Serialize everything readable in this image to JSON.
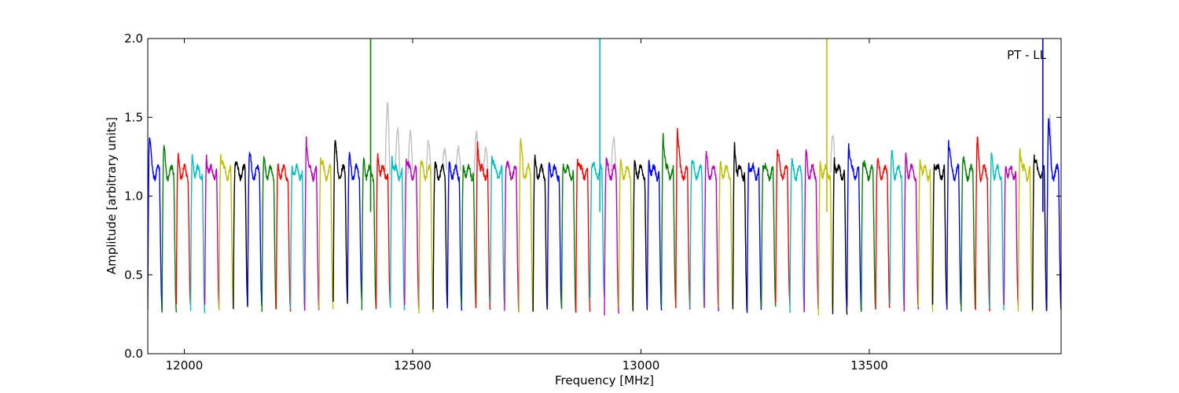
{
  "chart_data": {
    "type": "line",
    "title": "",
    "annotation": "PT - LL",
    "xlabel": "Frequency [MHz]",
    "ylabel": "Amplitude [arbitrary units]",
    "xlim": [
      11920,
      13920
    ],
    "ylim": [
      0.0,
      2.0
    ],
    "xticks": [
      12000,
      12500,
      13000,
      13500
    ],
    "xtick_labels": [
      "12000",
      "12500",
      "13000",
      "13500"
    ],
    "yticks": [
      0.0,
      0.5,
      1.0,
      1.5,
      2.0
    ],
    "ytick_labels": [
      "0.0",
      "0.5",
      "1.0",
      "1.5",
      "2.0"
    ],
    "grid": false,
    "legend": "none",
    "series_colors": [
      "#0000ff",
      "#008000",
      "#ff0000",
      "#00bfbf",
      "#bf00bf",
      "#bfbf00",
      "#000000"
    ],
    "background_series_color": "#c0c0c0",
    "channel_start_mhz": 11920,
    "channel_width_mhz": 31.25,
    "channel_count": 64,
    "channel_peak_levels": [
      1.38,
      1.29,
      1.23,
      1.27,
      1.25,
      1.28,
      1.21,
      1.25,
      1.22,
      1.2,
      1.2,
      1.37,
      1.23,
      1.34,
      1.25,
      1.23,
      1.28,
      1.26,
      1.23,
      1.2,
      1.17,
      1.2,
      1.21,
      1.35,
      1.27,
      1.2,
      1.35,
      1.22,
      1.22,
      1.22,
      1.25,
      1.2,
      1.2,
      1.19,
      1.22,
      1.24,
      1.4,
      1.42,
      1.2,
      1.24,
      1.2,
      1.33,
      1.22,
      1.2,
      1.28,
      1.19,
      1.28,
      1.22,
      1.24,
      1.34,
      1.2,
      1.2,
      1.27,
      1.26,
      1.25,
      1.22,
      1.34,
      1.22,
      1.35,
      1.27,
      1.2,
      1.32,
      1.26,
      1.5
    ],
    "channel_dip_levels": [
      0.28,
      0.27,
      0.32,
      0.26,
      0.3,
      0.28,
      0.3,
      0.31,
      0.27,
      0.28,
      0.29,
      0.27,
      0.27,
      0.33,
      0.35,
      0.28,
      0.3,
      0.28,
      0.29,
      0.27,
      0.29,
      0.28,
      0.3,
      0.28,
      0.31,
      0.28,
      0.26,
      0.28,
      0.3,
      0.27,
      0.27,
      0.35,
      0.26,
      0.28,
      0.29,
      0.28,
      0.31,
      0.28,
      0.3,
      0.28,
      0.29,
      0.27,
      0.27,
      0.3,
      0.31,
      0.27,
      0.28,
      0.26,
      0.26,
      0.28,
      0.28,
      0.28,
      0.3,
      0.28,
      0.28,
      0.3,
      0.29,
      0.28,
      0.28,
      0.28,
      0.3,
      0.26,
      0.27,
      0.29
    ],
    "spikes": [
      {
        "x": 12408,
        "y": 2.0,
        "color": "#008000"
      },
      {
        "x": 12910,
        "y": 2.0,
        "color": "#00bfbf"
      },
      {
        "x": 13407,
        "y": 2.0,
        "color": "#bfbf00"
      },
      {
        "x": 13880,
        "y": 2.0,
        "color": "#0000ff"
      }
    ],
    "gray_bumps": [
      {
        "x": 12445,
        "y": 1.58
      },
      {
        "x": 12467,
        "y": 1.42
      },
      {
        "x": 12495,
        "y": 1.4
      },
      {
        "x": 12535,
        "y": 1.35
      },
      {
        "x": 12570,
        "y": 1.3
      },
      {
        "x": 12600,
        "y": 1.3
      },
      {
        "x": 12640,
        "y": 1.4
      },
      {
        "x": 12660,
        "y": 1.3
      },
      {
        "x": 12940,
        "y": 1.37
      },
      {
        "x": 13420,
        "y": 1.4
      },
      {
        "x": 13895,
        "y": 1.5
      }
    ]
  }
}
